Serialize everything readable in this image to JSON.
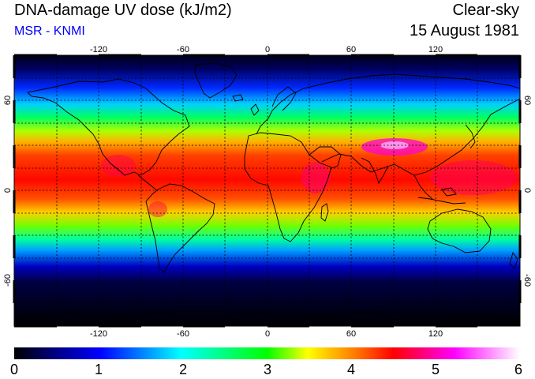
{
  "header": {
    "title": "DNA-damage UV dose (kJ/m2)",
    "subtitle": "MSR - KNMI",
    "sky_condition": "Clear-sky",
    "date": "15 August 1981"
  },
  "map": {
    "projection": "equirectangular",
    "lon_range": [
      -180,
      180
    ],
    "lat_range": [
      -90,
      90
    ],
    "gridlines": "dotted every 30 degrees",
    "lon_tick_labels": [
      "-120",
      "-60",
      "0",
      "60",
      "120"
    ],
    "lat_tick_labels": [
      "60",
      "0",
      "-60"
    ],
    "coastlines": true
  },
  "colorbar": {
    "tick_labels": [
      "0",
      "1",
      "2",
      "3",
      "4",
      "5",
      "6"
    ],
    "colors": [
      "#000000",
      "#000080",
      "#0000ff",
      "#00ffff",
      "#00ff00",
      "#ffff00",
      "#ff8000",
      "#ff0000",
      "#ff00ff",
      "#ffffff"
    ]
  }
}
